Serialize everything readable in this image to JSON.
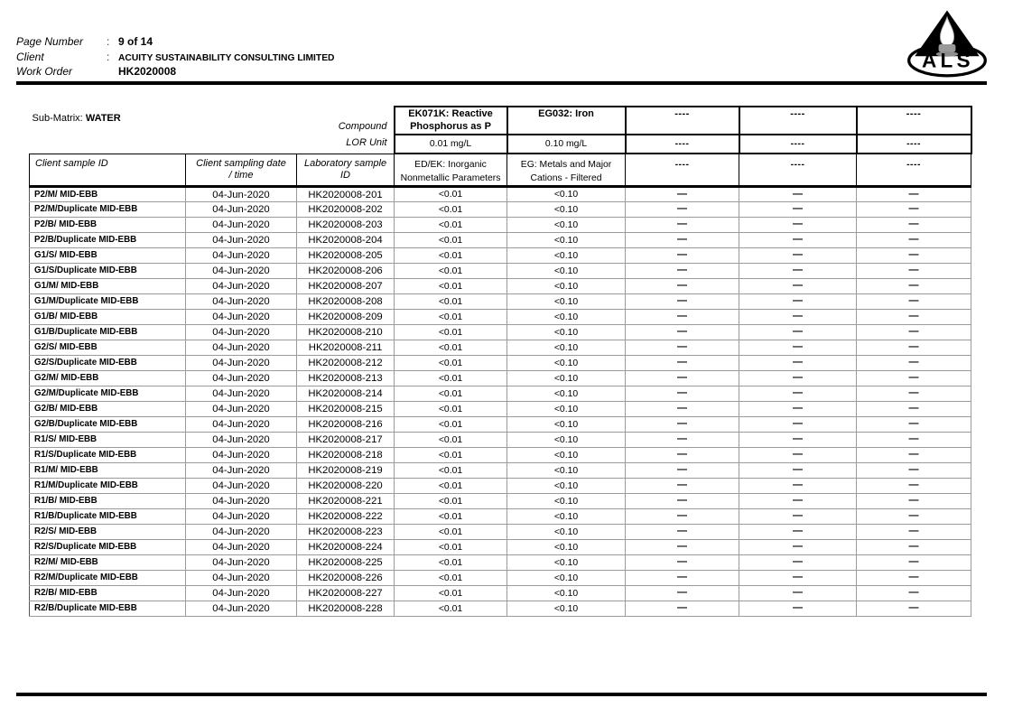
{
  "header": {
    "rows": [
      {
        "label": "Page Number",
        "sep": ":",
        "value": "9 of 14"
      },
      {
        "label": "Client",
        "sep": ":",
        "value": "ACUITY SUSTAINABILITY CONSULTING LIMITED"
      },
      {
        "label": "Work Order",
        "sep": "",
        "value": "HK2020008"
      }
    ],
    "logo_text": "ALS"
  },
  "table": {
    "sub_matrix_label": "Sub-Matrix:",
    "sub_matrix_value": "WATER",
    "compound_label": "Compound",
    "lor_unit_label": "LOR Unit",
    "id_headers": [
      {
        "lines": [
          "Client sample ID"
        ]
      },
      {
        "lines": [
          "Client sampling date",
          "/ time"
        ]
      },
      {
        "lines": [
          "Laboratory sample",
          "ID"
        ]
      }
    ],
    "analyte_columns": [
      {
        "compound": "EK071K: Reactive Phosphorus as P",
        "lor_unit": "0.01 mg/L",
        "method": "ED/EK: Inorganic Nonmetallic Parameters"
      },
      {
        "compound": "EG032: Iron",
        "lor_unit": "0.10 mg/L",
        "method": "EG: Metals and Major Cations - Filtered"
      },
      {
        "compound": "----",
        "lor_unit": "----",
        "method": "----"
      },
      {
        "compound": "----",
        "lor_unit": "----",
        "method": "----"
      },
      {
        "compound": "----",
        "lor_unit": "----",
        "method": "----"
      }
    ]
  },
  "rows": [
    {
      "client_sample_id": "P2/M/ MID-EBB",
      "date": "04-Jun-2020",
      "lab_id": "HK2020008-201",
      "values": [
        "<0.01",
        "<0.10",
        "—",
        "—",
        "—"
      ]
    },
    {
      "client_sample_id": "P2/M/Duplicate MID-EBB",
      "date": "04-Jun-2020",
      "lab_id": "HK2020008-202",
      "values": [
        "<0.01",
        "<0.10",
        "—",
        "—",
        "—"
      ]
    },
    {
      "client_sample_id": "P2/B/ MID-EBB",
      "date": "04-Jun-2020",
      "lab_id": "HK2020008-203",
      "values": [
        "<0.01",
        "<0.10",
        "—",
        "—",
        "—"
      ]
    },
    {
      "client_sample_id": "P2/B/Duplicate MID-EBB",
      "date": "04-Jun-2020",
      "lab_id": "HK2020008-204",
      "values": [
        "<0.01",
        "<0.10",
        "—",
        "—",
        "—"
      ]
    },
    {
      "client_sample_id": "G1/S/ MID-EBB",
      "date": "04-Jun-2020",
      "lab_id": "HK2020008-205",
      "values": [
        "<0.01",
        "<0.10",
        "—",
        "—",
        "—"
      ]
    },
    {
      "client_sample_id": "G1/S/Duplicate MID-EBB",
      "date": "04-Jun-2020",
      "lab_id": "HK2020008-206",
      "values": [
        "<0.01",
        "<0.10",
        "—",
        "—",
        "—"
      ]
    },
    {
      "client_sample_id": "G1/M/ MID-EBB",
      "date": "04-Jun-2020",
      "lab_id": "HK2020008-207",
      "values": [
        "<0.01",
        "<0.10",
        "—",
        "—",
        "—"
      ]
    },
    {
      "client_sample_id": "G1/M/Duplicate MID-EBB",
      "date": "04-Jun-2020",
      "lab_id": "HK2020008-208",
      "values": [
        "<0.01",
        "<0.10",
        "—",
        "—",
        "—"
      ]
    },
    {
      "client_sample_id": "G1/B/ MID-EBB",
      "date": "04-Jun-2020",
      "lab_id": "HK2020008-209",
      "values": [
        "<0.01",
        "<0.10",
        "—",
        "—",
        "—"
      ]
    },
    {
      "client_sample_id": "G1/B/Duplicate MID-EBB",
      "date": "04-Jun-2020",
      "lab_id": "HK2020008-210",
      "values": [
        "<0.01",
        "<0.10",
        "—",
        "—",
        "—"
      ]
    },
    {
      "client_sample_id": "G2/S/ MID-EBB",
      "date": "04-Jun-2020",
      "lab_id": "HK2020008-211",
      "values": [
        "<0.01",
        "<0.10",
        "—",
        "—",
        "—"
      ]
    },
    {
      "client_sample_id": "G2/S/Duplicate MID-EBB",
      "date": "04-Jun-2020",
      "lab_id": "HK2020008-212",
      "values": [
        "<0.01",
        "<0.10",
        "—",
        "—",
        "—"
      ]
    },
    {
      "client_sample_id": "G2/M/ MID-EBB",
      "date": "04-Jun-2020",
      "lab_id": "HK2020008-213",
      "values": [
        "<0.01",
        "<0.10",
        "—",
        "—",
        "—"
      ]
    },
    {
      "client_sample_id": "G2/M/Duplicate MID-EBB",
      "date": "04-Jun-2020",
      "lab_id": "HK2020008-214",
      "values": [
        "<0.01",
        "<0.10",
        "—",
        "—",
        "—"
      ]
    },
    {
      "client_sample_id": "G2/B/ MID-EBB",
      "date": "04-Jun-2020",
      "lab_id": "HK2020008-215",
      "values": [
        "<0.01",
        "<0.10",
        "—",
        "—",
        "—"
      ]
    },
    {
      "client_sample_id": "G2/B/Duplicate MID-EBB",
      "date": "04-Jun-2020",
      "lab_id": "HK2020008-216",
      "values": [
        "<0.01",
        "<0.10",
        "—",
        "—",
        "—"
      ]
    },
    {
      "client_sample_id": "R1/S/ MID-EBB",
      "date": "04-Jun-2020",
      "lab_id": "HK2020008-217",
      "values": [
        "<0.01",
        "<0.10",
        "—",
        "—",
        "—"
      ]
    },
    {
      "client_sample_id": "R1/S/Duplicate MID-EBB",
      "date": "04-Jun-2020",
      "lab_id": "HK2020008-218",
      "values": [
        "<0.01",
        "<0.10",
        "—",
        "—",
        "—"
      ]
    },
    {
      "client_sample_id": "R1/M/ MID-EBB",
      "date": "04-Jun-2020",
      "lab_id": "HK2020008-219",
      "values": [
        "<0.01",
        "<0.10",
        "—",
        "—",
        "—"
      ]
    },
    {
      "client_sample_id": "R1/M/Duplicate MID-EBB",
      "date": "04-Jun-2020",
      "lab_id": "HK2020008-220",
      "values": [
        "<0.01",
        "<0.10",
        "—",
        "—",
        "—"
      ]
    },
    {
      "client_sample_id": "R1/B/ MID-EBB",
      "date": "04-Jun-2020",
      "lab_id": "HK2020008-221",
      "values": [
        "<0.01",
        "<0.10",
        "—",
        "—",
        "—"
      ]
    },
    {
      "client_sample_id": "R1/B/Duplicate MID-EBB",
      "date": "04-Jun-2020",
      "lab_id": "HK2020008-222",
      "values": [
        "<0.01",
        "<0.10",
        "—",
        "—",
        "—"
      ]
    },
    {
      "client_sample_id": "R2/S/ MID-EBB",
      "date": "04-Jun-2020",
      "lab_id": "HK2020008-223",
      "values": [
        "<0.01",
        "<0.10",
        "—",
        "—",
        "—"
      ]
    },
    {
      "client_sample_id": "R2/S/Duplicate MID-EBB",
      "date": "04-Jun-2020",
      "lab_id": "HK2020008-224",
      "values": [
        "<0.01",
        "<0.10",
        "—",
        "—",
        "—"
      ]
    },
    {
      "client_sample_id": "R2/M/ MID-EBB",
      "date": "04-Jun-2020",
      "lab_id": "HK2020008-225",
      "values": [
        "<0.01",
        "<0.10",
        "—",
        "—",
        "—"
      ]
    },
    {
      "client_sample_id": "R2/M/Duplicate MID-EBB",
      "date": "04-Jun-2020",
      "lab_id": "HK2020008-226",
      "values": [
        "<0.01",
        "<0.10",
        "—",
        "—",
        "—"
      ]
    },
    {
      "client_sample_id": "R2/B/ MID-EBB",
      "date": "04-Jun-2020",
      "lab_id": "HK2020008-227",
      "values": [
        "<0.01",
        "<0.10",
        "—",
        "—",
        "—"
      ]
    },
    {
      "client_sample_id": "R2/B/Duplicate MID-EBB",
      "date": "04-Jun-2020",
      "lab_id": "HK2020008-228",
      "values": [
        "<0.01",
        "<0.10",
        "—",
        "—",
        "—"
      ]
    }
  ]
}
